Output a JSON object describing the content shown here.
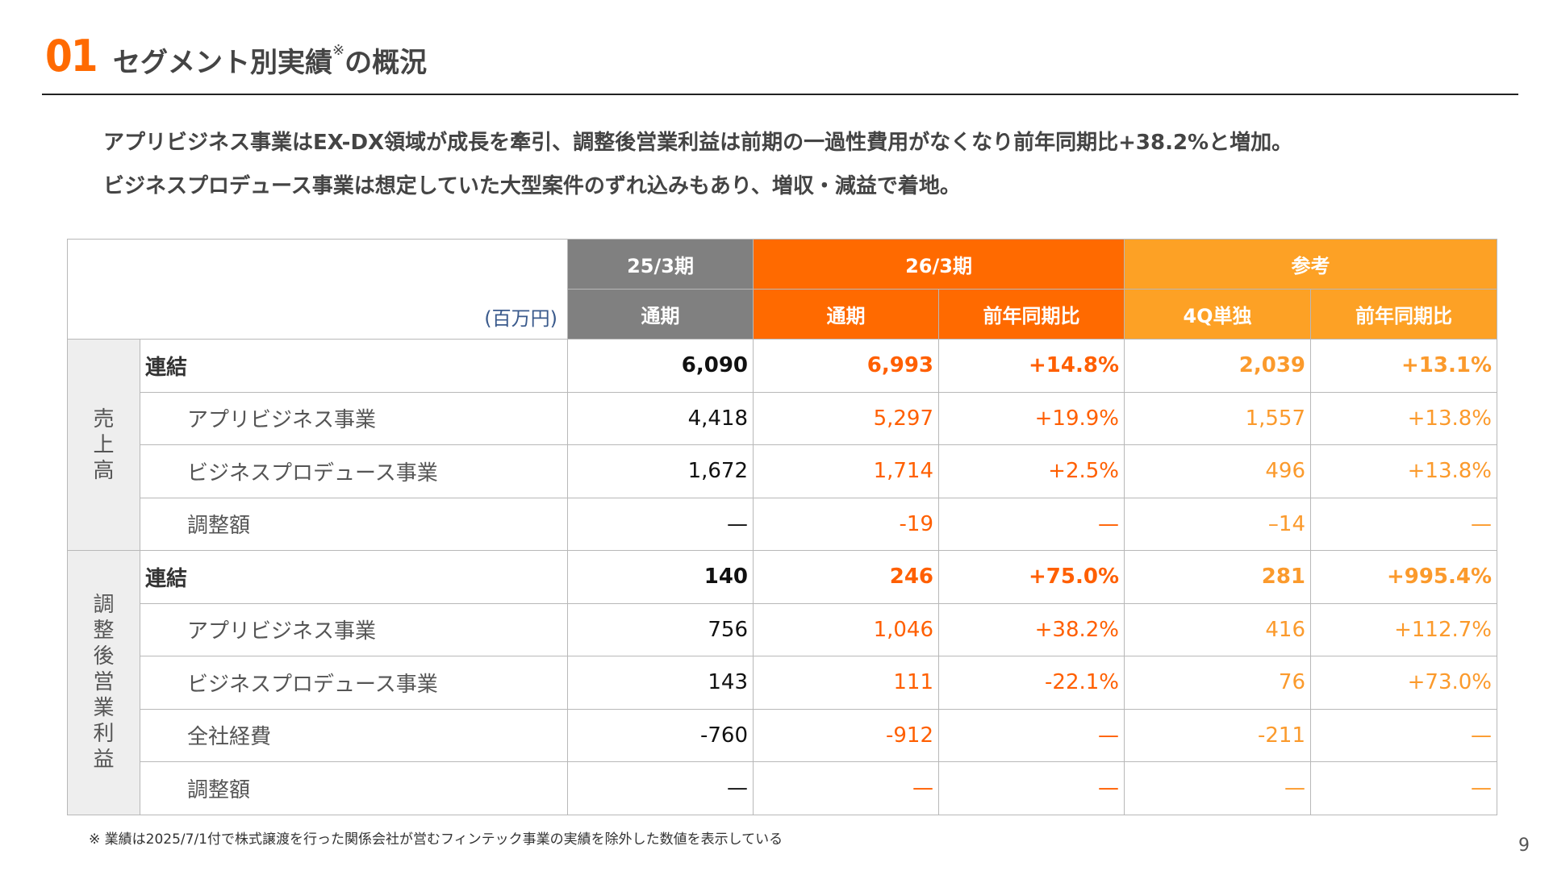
{
  "header": {
    "number": "01",
    "title": "セグメント別実績",
    "title_mark": "※",
    "title_suffix": "の概況"
  },
  "lead": [
    "アプリビジネス事業はEX-DX領域が成長を牽引、調整後営業利益は前期の一過性費用がなくなり前年同期比+38.2%と増加。",
    "ビジネスプロデュース事業は想定していた大型案件のずれ込みもあり、増収・減益で着地。"
  ],
  "table": {
    "unit": "(百万円)",
    "groups": {
      "prev": "25/3期",
      "cur": "26/3期",
      "ref": "参考"
    },
    "subheaders": {
      "prev_full": "通期",
      "cur_full": "通期",
      "cur_yoy": "前年同期比",
      "ref_q4": "4Q単独",
      "ref_yoy": "前年同期比"
    },
    "sections": [
      {
        "label": [
          "売",
          "上",
          "高"
        ],
        "rows": [
          {
            "label": "連結",
            "bold": true,
            "values": [
              "6,090",
              "6,993",
              "+14.8%",
              "2,039",
              "+13.1%"
            ]
          },
          {
            "label": "アプリビジネス事業",
            "bold": false,
            "values": [
              "4,418",
              "5,297",
              "+19.9%",
              "1,557",
              "+13.8%"
            ]
          },
          {
            "label": "ビジネスプロデュース事業",
            "bold": false,
            "values": [
              "1,672",
              "1,714",
              "+2.5%",
              "496",
              "+13.8%"
            ]
          },
          {
            "label": "調整額",
            "bold": false,
            "values": [
              "—",
              "-19",
              "—",
              "–14",
              "—"
            ]
          }
        ]
      },
      {
        "label": [
          "調",
          "整",
          "後",
          "営",
          "業",
          "利",
          "益"
        ],
        "rows": [
          {
            "label": "連結",
            "bold": true,
            "values": [
              "140",
              "246",
              "+75.0%",
              "281",
              "+995.4%"
            ]
          },
          {
            "label": "アプリビジネス事業",
            "bold": false,
            "values": [
              "756",
              "1,046",
              "+38.2%",
              "416",
              "+112.7%"
            ]
          },
          {
            "label": "ビジネスプロデュース事業",
            "bold": false,
            "values": [
              "143",
              "111",
              "-22.1%",
              "76",
              "+73.0%"
            ]
          },
          {
            "label": "全社経費",
            "bold": false,
            "values": [
              "-760",
              "-912",
              "—",
              "-211",
              "—"
            ]
          },
          {
            "label": "調整額",
            "bold": false,
            "values": [
              "—",
              "—",
              "—",
              "—",
              "—"
            ]
          }
        ]
      }
    ]
  },
  "footnote": "※ 業績は2025/7/1付で株式譲渡を行った関係会社が営むフィンテック事業の実績を除外した数値を表示している",
  "page_number": "9",
  "colors": {
    "accent": "#ff6a00",
    "amber": "#fda125",
    "gray_header": "#808080"
  }
}
